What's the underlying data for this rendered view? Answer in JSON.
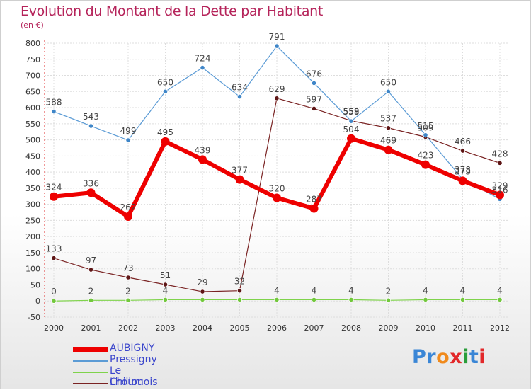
{
  "title": "Evolution du Montant de la Dette par Habitant",
  "unit": "(en €)",
  "logo": {
    "text": "Proxiti",
    "letter_colors": [
      "#3a86d6",
      "#3a86d6",
      "#f08a1c",
      "#e2282a",
      "#2a9d3a",
      "#3a86d6",
      "#e2282a"
    ]
  },
  "chart_data": {
    "type": "line",
    "title": "Evolution du Montant de la Dette par Habitant",
    "ylabel": "(en €)",
    "xlabel": "",
    "categories": [
      "2000",
      "2001",
      "2002",
      "2003",
      "2004",
      "2005",
      "2006",
      "2007",
      "2008",
      "2009",
      "2010",
      "2011",
      "2012"
    ],
    "ylim": [
      -50,
      800
    ],
    "yticks": [
      -50,
      0,
      50,
      100,
      150,
      200,
      250,
      300,
      350,
      400,
      450,
      500,
      550,
      600,
      650,
      700,
      750,
      800
    ],
    "grid": true,
    "legend": "bottom-left",
    "series": [
      {
        "name": "AUBIGNY",
        "color": "#ee0000",
        "values": [
          324,
          336,
          262,
          495,
          439,
          377,
          320,
          287,
          504,
          469,
          423,
          373,
          329
        ],
        "labels": [
          "324",
          "336",
          "262",
          "495",
          "439",
          "377",
          "320",
          "287",
          "504",
          "469",
          "423",
          "373",
          "329"
        ]
      },
      {
        "name": "Pressigny",
        "color": "#5b9bd5",
        "values": [
          588,
          543,
          499,
          650,
          724,
          634,
          791,
          676,
          558,
          650,
          515,
          378,
          316
        ],
        "labels": [
          "588",
          "543",
          "499",
          "650",
          "724",
          "634",
          "791",
          "676",
          "558",
          "650",
          "515",
          "378",
          "316"
        ]
      },
      {
        "name": "Le Chillou",
        "color": "#7fd34b",
        "values": [
          0,
          2,
          2,
          4,
          4,
          4,
          4,
          4,
          4,
          2,
          4,
          4,
          4
        ],
        "labels": [
          "0",
          "2",
          "2",
          "4",
          "",
          "",
          "4",
          "4",
          "4",
          "2",
          "4",
          "4",
          "4"
        ]
      },
      {
        "name": "Lhoumois",
        "color": "#7a2323",
        "values": [
          133,
          97,
          73,
          51,
          29,
          32,
          629,
          597,
          559,
          537,
          509,
          466,
          428
        ],
        "labels": [
          "133",
          "97",
          "73",
          "51",
          "29",
          "32",
          "629",
          "597",
          "559",
          "537",
          "509",
          "466",
          "428"
        ]
      }
    ]
  }
}
